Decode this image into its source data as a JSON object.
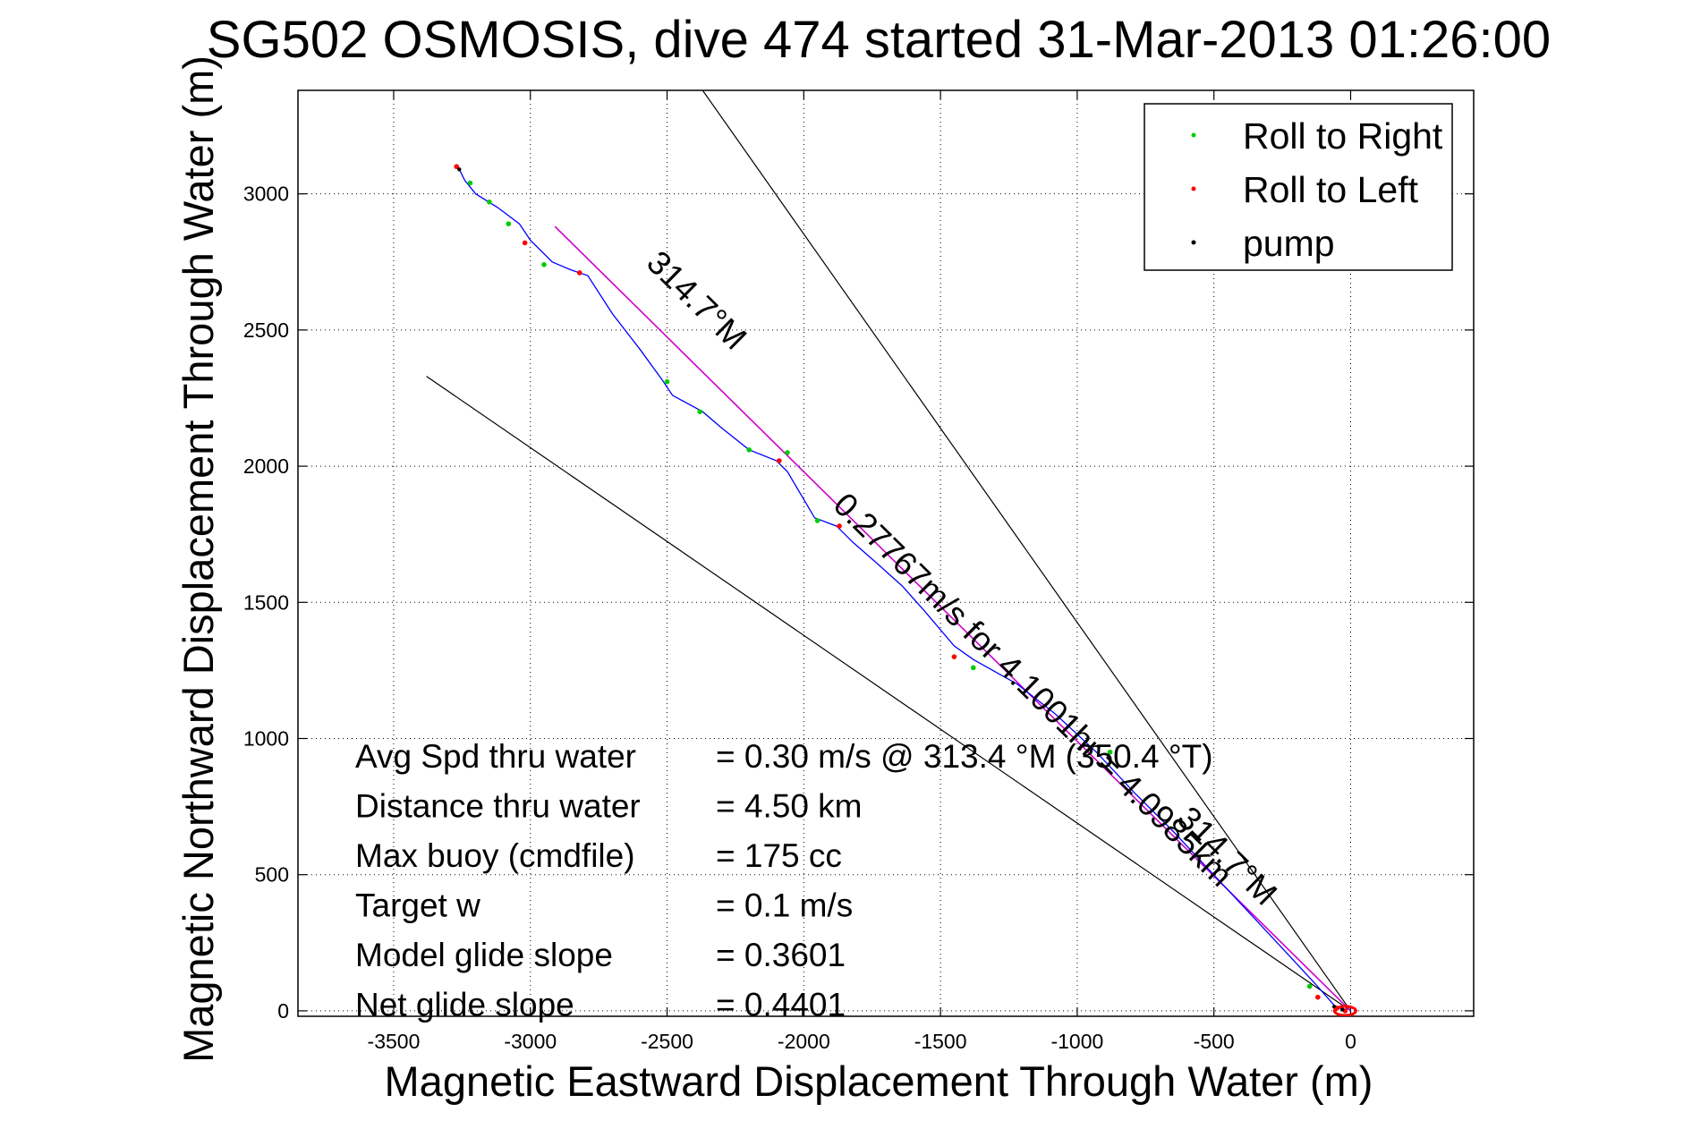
{
  "chart_data": {
    "type": "scatter",
    "title": "SG502 OSMOSIS, dive 474 started 31-Mar-2013 01:26:00",
    "xlabel": "Magnetic Eastward Displacement Through Water (m)",
    "ylabel": "Magnetic Northward Displacement Through Water (m)",
    "xlim": [
      -3850,
      450
    ],
    "ylim": [
      -20,
      3380
    ],
    "x_ticks": [
      -3500,
      -3000,
      -2500,
      -2000,
      -1500,
      -1000,
      -500,
      0
    ],
    "y_ticks": [
      0,
      500,
      1000,
      1500,
      2000,
      2500,
      3000
    ],
    "grid": true,
    "legend_position": "top-right",
    "legend": [
      {
        "label": "Roll to Right",
        "color": "#00cc00",
        "marker": "dot"
      },
      {
        "label": "Roll to Left",
        "color": "#ff0000",
        "marker": "dot"
      },
      {
        "label": "pump",
        "color": "#000000",
        "marker": "dot"
      }
    ],
    "track": {
      "color": "#0000ff",
      "x": [
        -20,
        -60,
        -130,
        -250,
        -380,
        -520,
        -650,
        -790,
        -930,
        -1080,
        -1220,
        -1380,
        -1450,
        -1560,
        -1640,
        -1740,
        -1820,
        -1880,
        -1960,
        -2060,
        -2100,
        -2200,
        -2300,
        -2370,
        -2480,
        -2520,
        -2600,
        -2700,
        -2790,
        -2850,
        -2920,
        -3000,
        -3040,
        -3120,
        -3200,
        -3240,
        -3260
      ],
      "y": [
        0,
        20,
        100,
        230,
        370,
        520,
        660,
        800,
        950,
        1090,
        1200,
        1290,
        1340,
        1470,
        1560,
        1650,
        1720,
        1780,
        1810,
        1980,
        2020,
        2060,
        2140,
        2200,
        2260,
        2320,
        2430,
        2560,
        2700,
        2720,
        2750,
        2830,
        2890,
        2950,
        3000,
        3050,
        3090
      ]
    },
    "roll_right_points": {
      "x": [
        -150,
        -880,
        -1380,
        -1950,
        -2060,
        -2200,
        -2380,
        -2500,
        -2950,
        -3080,
        -3150,
        -3220
      ],
      "y": [
        90,
        950,
        1260,
        1800,
        2050,
        2060,
        2200,
        2310,
        2740,
        2890,
        2970,
        3040
      ]
    },
    "roll_left_points": {
      "x": [
        -20,
        -50,
        -120,
        -1450,
        -1870,
        -2090,
        -2820,
        -3020,
        -3270
      ],
      "y": [
        0,
        10,
        50,
        1300,
        1780,
        2020,
        2710,
        2820,
        3100
      ]
    },
    "pump_points": {
      "x": [
        -30,
        -60,
        -3260
      ],
      "y": [
        5,
        15,
        3090
      ]
    },
    "heading_line": {
      "color": "#cc00cc",
      "x": [
        0,
        -2910
      ],
      "y": [
        0,
        2880
      ]
    },
    "cone_lines": {
      "color": "#000000",
      "lines": [
        {
          "x": [
            0,
            -2370
          ],
          "y": [
            0,
            3380
          ]
        },
        {
          "x": [
            0,
            -3380
          ],
          "y": [
            0,
            2330
          ]
        }
      ]
    },
    "annotations": {
      "heading_top": "314.7°M",
      "heading_bottom": "314.7°M",
      "speed_text": "0.27767m/s for 4.1001hr = 4.0985km"
    },
    "stats": [
      {
        "label": "Avg Spd thru water",
        "value": "=  0.30 m/s @ 313.4 °M (350.4 °T)"
      },
      {
        "label": "Distance thru water",
        "value": "=  4.50 km"
      },
      {
        "label": "Max buoy (cmdfile)",
        "value": "= 175 cc"
      },
      {
        "label": "Target w",
        "value": "= 0.1 m/s"
      },
      {
        "label": "Model glide slope",
        "value": "= 0.3601"
      },
      {
        "label": "Net glide slope",
        "value": "= 0.4401"
      }
    ]
  }
}
